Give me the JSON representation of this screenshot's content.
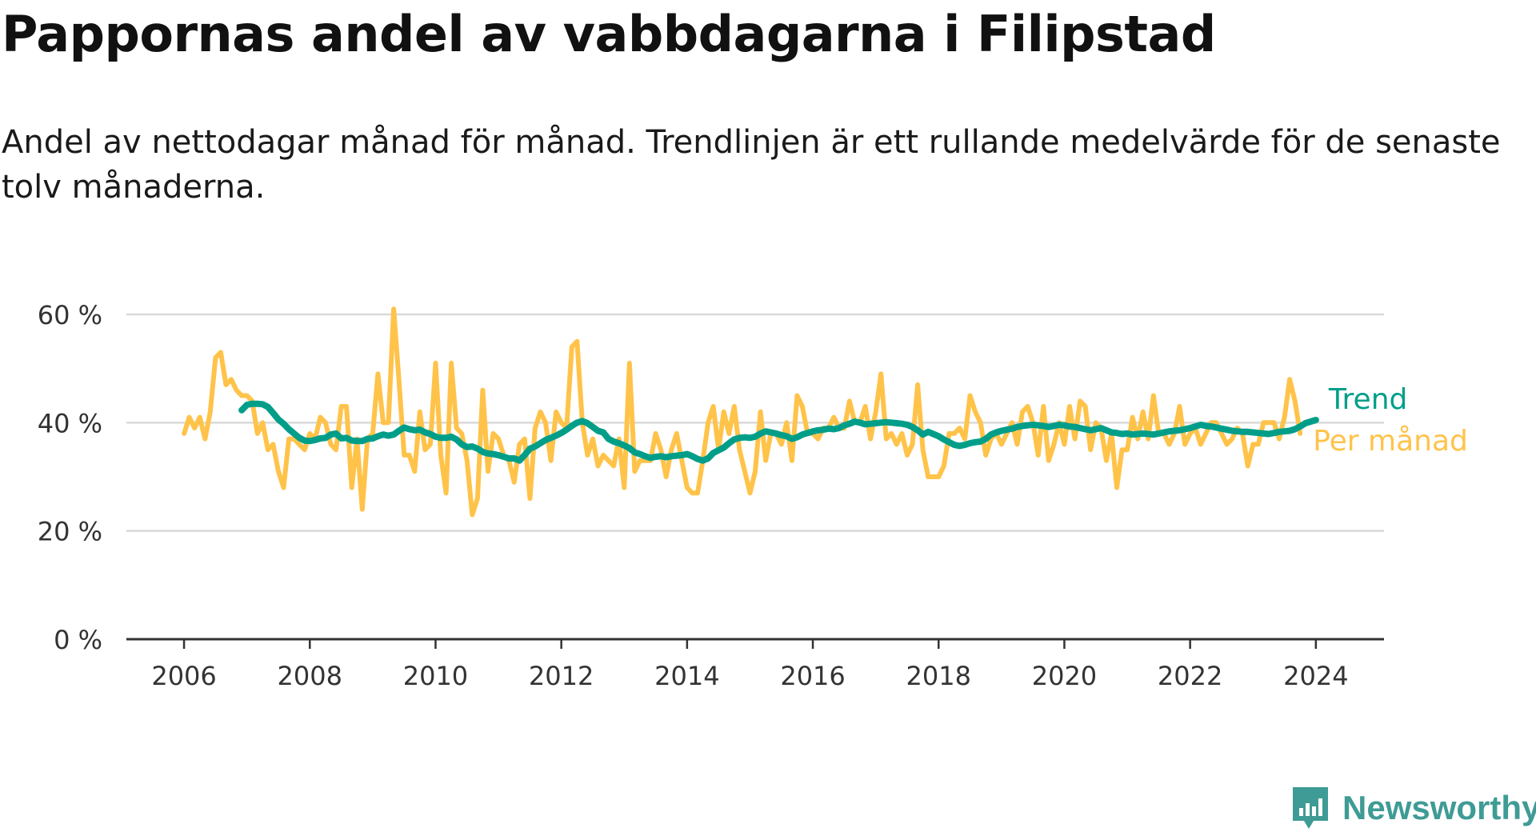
{
  "title": "Pappornas andel av vabbdagarna i Filipstad",
  "subtitle": "Andel av nettodagar månad för månad. Trendlinjen är ett rullande medelvärde för de senaste tolv månaderna.",
  "brand": {
    "name": "Newsworthy",
    "icon": "newsworthy-logo-icon",
    "color": "#3f9b95"
  },
  "chart_data": {
    "type": "line",
    "title": "Pappornas andel av vabbdagarna i Filipstad",
    "xlabel": "",
    "ylabel": "",
    "x_ticks": [
      "2006",
      "2008",
      "2010",
      "2012",
      "2014",
      "2016",
      "2018",
      "2020",
      "2022",
      "2024"
    ],
    "y_ticks": [
      "0 %",
      "20 %",
      "40 %",
      "60 %"
    ],
    "ylim": [
      0,
      60
    ],
    "xlim": [
      "2005-02",
      "2025-02"
    ],
    "grid": "horizontal",
    "legend": "right end labels",
    "colors": {
      "trend": "#009e89",
      "monthly": "#ffc34a",
      "grid": "#d9d9d9",
      "axis": "#333333"
    },
    "series": [
      {
        "name": "Per månad",
        "start": "2006-01",
        "values": [
          38,
          41,
          39,
          41,
          37,
          42,
          52,
          53,
          47,
          48,
          46,
          45,
          45,
          44,
          38,
          40,
          35,
          36,
          31,
          28,
          37,
          37,
          36,
          35,
          38,
          37,
          41,
          40,
          36,
          35,
          43,
          43,
          28,
          37,
          24,
          37,
          38,
          49,
          40,
          40,
          61,
          48,
          34,
          34,
          31,
          42,
          35,
          36,
          51,
          34,
          27,
          51,
          39,
          38,
          33,
          23,
          26,
          46,
          31,
          38,
          37,
          34,
          33,
          29,
          36,
          37,
          26,
          39,
          42,
          40,
          33,
          42,
          40,
          39,
          54,
          55,
          40,
          34,
          37,
          32,
          34,
          33,
          32,
          37,
          28,
          51,
          31,
          33,
          33,
          33,
          38,
          35,
          30,
          35,
          38,
          33,
          28,
          27,
          27,
          33,
          40,
          43,
          35,
          42,
          38,
          43,
          35,
          31,
          27,
          31,
          42,
          33,
          38,
          38,
          36,
          40,
          33,
          45,
          43,
          38,
          38,
          37,
          39,
          39,
          41,
          39,
          39,
          44,
          40,
          40,
          43,
          37,
          42,
          49,
          37,
          38,
          36,
          38,
          34,
          36,
          47,
          35,
          30,
          30,
          30,
          32,
          38,
          38,
          39,
          37,
          45,
          42,
          40,
          34,
          37,
          38,
          36,
          38,
          40,
          36,
          42,
          43,
          40,
          34,
          43,
          33,
          36,
          40,
          36,
          43,
          37,
          44,
          43,
          35,
          40,
          39,
          33,
          38,
          28,
          35,
          35,
          41,
          37,
          42,
          37,
          45,
          38,
          38,
          36,
          38,
          43,
          36,
          38,
          39,
          36,
          38,
          40,
          40,
          38,
          36,
          37,
          39,
          38,
          32,
          36,
          36,
          40,
          40,
          40,
          37,
          41,
          48,
          44,
          38
        ],
        "end_label": "Per månad"
      },
      {
        "name": "Trend",
        "start": "2006-12",
        "values": [
          42.3,
          43.3,
          43.5,
          43.5,
          43.4,
          42.9,
          41.8,
          40.6,
          39.8,
          38.8,
          38.0,
          37.2,
          36.7,
          36.6,
          36.8,
          37.1,
          37.2,
          37.8,
          38.0,
          37.1,
          37.2,
          36.7,
          36.6,
          36.6,
          37.0,
          37.1,
          37.5,
          37.8,
          37.6,
          37.8,
          38.5,
          39.1,
          38.8,
          38.6,
          38.7,
          38.2,
          37.9,
          37.4,
          37.2,
          37.2,
          37.4,
          36.9,
          36.0,
          35.5,
          35.6,
          35.2,
          34.6,
          34.3,
          34.2,
          34.0,
          33.7,
          33.4,
          33.4,
          33.0,
          34.0,
          35.2,
          35.6,
          36.2,
          36.8,
          37.2,
          37.6,
          38.1,
          38.7,
          39.4,
          40.0,
          40.3,
          39.9,
          39.2,
          38.5,
          38.2,
          37.0,
          36.5,
          36.2,
          35.8,
          35.3,
          34.5,
          34.2,
          33.8,
          33.5,
          33.7,
          33.8,
          33.6,
          33.8,
          33.9,
          34.0,
          34.2,
          33.8,
          33.3,
          33.0,
          33.4,
          34.4,
          34.9,
          35.4,
          36.2,
          36.9,
          37.2,
          37.3,
          37.2,
          37.4,
          38.0,
          38.4,
          38.2,
          38.0,
          37.7,
          37.5,
          37.0,
          37.3,
          37.8,
          38.1,
          38.4,
          38.6,
          38.7,
          38.9,
          38.8,
          39.0,
          39.5,
          39.8,
          40.2,
          40.0,
          39.7,
          39.8,
          39.9,
          40.0,
          40.1,
          40.0,
          39.9,
          39.8,
          39.6,
          39.2,
          38.6,
          37.8,
          38.3,
          37.9,
          37.5,
          36.9,
          36.4,
          35.9,
          35.7,
          35.9,
          36.2,
          36.4,
          36.5,
          37.0,
          37.8,
          38.2,
          38.5,
          38.7,
          38.9,
          39.2,
          39.4,
          39.5,
          39.6,
          39.5,
          39.4,
          39.2,
          39.4,
          39.6,
          39.5,
          39.3,
          39.2,
          39.0,
          38.8,
          38.6,
          38.8,
          39.0,
          38.6,
          38.2,
          38.1,
          37.9,
          38.0,
          37.8,
          37.9,
          38.0,
          37.9,
          37.8,
          38.0,
          38.2,
          38.4,
          38.5,
          38.6,
          38.8,
          39.0,
          39.3,
          39.6,
          39.4,
          39.3,
          39.1,
          38.9,
          38.7,
          38.5,
          38.4,
          38.3,
          38.3,
          38.2,
          38.1,
          38.0,
          37.9,
          38.1,
          38.3,
          38.4,
          38.5,
          38.8,
          39.3,
          39.9,
          40.2,
          40.5
        ],
        "end_label": "Trend"
      }
    ]
  }
}
